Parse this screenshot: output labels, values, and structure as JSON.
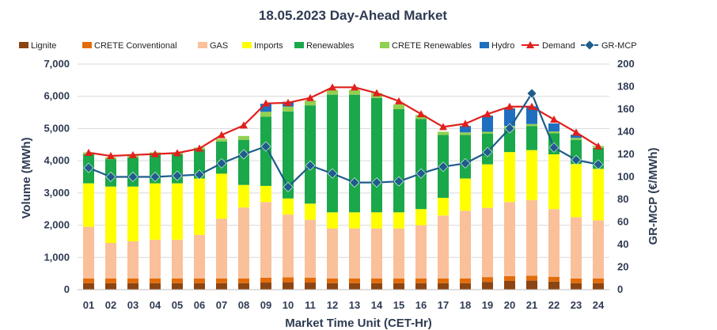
{
  "chart_data": {
    "type": "bar",
    "stacked": true,
    "title": "18.05.2023  Day-Ahead Market",
    "xlabel": "Market Time Unit (CET-Hr)",
    "ylabel": "Volume (MWh)",
    "y2label": "GR-MCP (€/MWh)",
    "ylim": [
      0,
      7000
    ],
    "y2lim": [
      0,
      200
    ],
    "yticks": [
      "0",
      "1,000",
      "2,000",
      "3,000",
      "4,000",
      "5,000",
      "6,000",
      "7,000"
    ],
    "y2ticks": [
      "0",
      "20",
      "40",
      "60",
      "80",
      "100",
      "120",
      "140",
      "160",
      "180",
      "200"
    ],
    "categories": [
      "01",
      "02",
      "03",
      "04",
      "05",
      "06",
      "07",
      "08",
      "09",
      "10",
      "11",
      "12",
      "13",
      "14",
      "15",
      "16",
      "17",
      "18",
      "19",
      "20",
      "21",
      "22",
      "23",
      "24"
    ],
    "legend_position": "top",
    "grid": "horizontal",
    "series": [
      {
        "name": "Lignite",
        "color": "#8b4513",
        "kind": "bar",
        "values": [
          200,
          200,
          200,
          200,
          200,
          200,
          200,
          200,
          220,
          230,
          220,
          200,
          200,
          200,
          200,
          200,
          200,
          200,
          240,
          270,
          280,
          250,
          200,
          200
        ]
      },
      {
        "name": "CRETE Conventional",
        "color": "#e36c0a",
        "kind": "bar",
        "values": [
          150,
          150,
          150,
          150,
          150,
          150,
          150,
          150,
          150,
          150,
          150,
          150,
          150,
          150,
          150,
          150,
          150,
          150,
          150,
          150,
          150,
          150,
          150,
          150
        ]
      },
      {
        "name": "GAS",
        "color": "#f9c09a",
        "kind": "bar",
        "values": [
          1600,
          1100,
          1150,
          1200,
          1200,
          1350,
          1850,
          2200,
          2350,
          1950,
          1800,
          1550,
          1550,
          1550,
          1550,
          1650,
          1950,
          2100,
          2150,
          2300,
          2350,
          2100,
          1900,
          1800
        ]
      },
      {
        "name": "Imports",
        "color": "#ffff00",
        "kind": "bar",
        "values": [
          1350,
          1750,
          1700,
          1750,
          1750,
          1750,
          1400,
          700,
          500,
          500,
          500,
          500,
          500,
          500,
          500,
          500,
          550,
          1000,
          1350,
          1550,
          1550,
          1700,
          1650,
          1600
        ]
      },
      {
        "name": "Renewables",
        "color": "#1aa84a",
        "kind": "bar",
        "values": [
          900,
          850,
          900,
          900,
          900,
          900,
          1000,
          1400,
          2150,
          2700,
          3050,
          3650,
          3650,
          3550,
          3200,
          2800,
          1950,
          1350,
          950,
          750,
          750,
          650,
          750,
          650
        ]
      },
      {
        "name": "CRETE Renewables",
        "color": "#92d050",
        "kind": "bar",
        "values": [
          60,
          60,
          60,
          60,
          60,
          60,
          80,
          120,
          150,
          150,
          150,
          150,
          150,
          150,
          150,
          120,
          100,
          80,
          60,
          60,
          60,
          60,
          60,
          60
        ]
      },
      {
        "name": "Hydro",
        "color": "#1f6fc0",
        "kind": "bar",
        "values": [
          0,
          0,
          0,
          0,
          0,
          0,
          0,
          0,
          250,
          150,
          0,
          0,
          0,
          0,
          0,
          0,
          0,
          200,
          500,
          550,
          550,
          250,
          100,
          0
        ]
      },
      {
        "name": "Demand",
        "color": "#e0201c",
        "kind": "line",
        "axis": "left",
        "marker": "triangle",
        "values": [
          4250,
          4150,
          4180,
          4210,
          4240,
          4380,
          4800,
          5100,
          5780,
          5800,
          5950,
          6280,
          6280,
          6100,
          5850,
          5450,
          5050,
          5150,
          5450,
          5680,
          5680,
          5280,
          4880,
          4450
        ]
      },
      {
        "name": "GR-MCP",
        "color": "#1e5c8a",
        "kind": "line",
        "axis": "right",
        "marker": "diamond",
        "values": [
          108,
          100,
          100,
          100,
          101,
          102,
          112,
          120,
          127,
          91,
          110,
          103,
          95,
          95,
          96,
          103,
          109,
          112,
          122,
          143,
          174,
          126,
          115,
          111
        ]
      }
    ]
  }
}
